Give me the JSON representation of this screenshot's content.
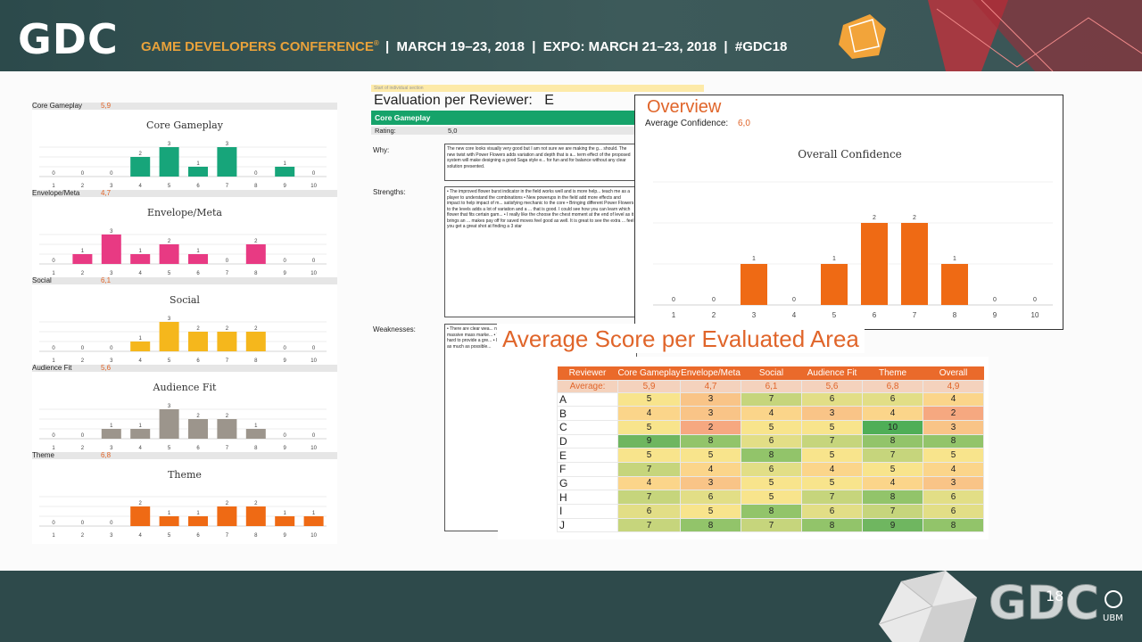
{
  "banner": {
    "logo": "GDC",
    "conference": "GAME DEVELOPERS CONFERENCE",
    "trademark": "®",
    "dates": "|  MARCH 19–23, 2018  |  EXPO: MARCH 21–23, 2018  |  #GDC18"
  },
  "footer": {
    "logo": "GDC",
    "year": "18",
    "company": "UBM"
  },
  "left_charts": [
    {
      "name": "Core Gameplay",
      "avg": "5,9",
      "color": "#17a57a",
      "values": [
        0,
        0,
        0,
        2,
        3,
        1,
        3,
        0,
        1,
        0
      ]
    },
    {
      "name": "Envelope/Meta",
      "avg": "4,7",
      "color": "#e83a83",
      "values": [
        0,
        1,
        3,
        1,
        2,
        1,
        0,
        2,
        0,
        0
      ]
    },
    {
      "name": "Social",
      "avg": "6,1",
      "color": "#f5b71c",
      "values": [
        0,
        0,
        0,
        1,
        3,
        2,
        2,
        2,
        0,
        0
      ]
    },
    {
      "name": "Audience Fit",
      "avg": "5,6",
      "color": "#9c958c",
      "values": [
        0,
        0,
        1,
        1,
        3,
        2,
        2,
        1,
        0,
        0
      ]
    },
    {
      "name": "Theme",
      "avg": "6,8",
      "color": "#ef6a14",
      "values": [
        0,
        0,
        0,
        2,
        1,
        1,
        2,
        2,
        1,
        1
      ]
    }
  ],
  "categories": [
    "1",
    "2",
    "3",
    "4",
    "5",
    "6",
    "7",
    "8",
    "9",
    "10"
  ],
  "evaluation": {
    "top_note": "Start of individual section",
    "title": "Evaluation per Reviewer:",
    "reviewer": "E",
    "section": "Core Gameplay",
    "rating_label": "Rating:",
    "rating_value": "5,0",
    "why_label": "Why:",
    "why_text": "The new core looks visually very good but I am not sure we are making the g... should. The new twist with Power Flowers adds variation and depth that is a... term effect of the proposed system will make designing a good Saga style e... for fun and for balance without any clear solution presented.",
    "strengths_label": "Strengths:",
    "strengths_text": "• The improved flower burst indicator in the field works well and is more help... teach me as a player to understand the combinations • New powerups in the field add more effects and impact to help impact of m... satisfying mechanic to the core • Bringing different Power Flowers to the levels adds a lot of variation and a ... that is good. I could see how you can learn which flower that fits certain gam... • I really like the choose the chest moment at the end of level as it brings an ... makes pay off for saved moves feel good as well. It is great to see the extra ... feel you get a great shot at finding a 3 star",
    "weaknesses_label": "Weaknesses:",
    "weaknesses_text": "• There are clear wea... not called out as a fu... harder for the player ... surgical impact on sp... massive mass marke... • The effects of Powe... controllable progress... The ability to further ... hard to provide a gre... • It feels like a shame... the biggest moment ... • The new powerups ... as much as possible..."
  },
  "overview": {
    "title": "Overview",
    "confidence_label": "Average Confidence:",
    "confidence_value": "6,0"
  },
  "chart_data": [
    {
      "type": "bar",
      "title": "Core Gameplay",
      "categories": [
        "1",
        "2",
        "3",
        "4",
        "5",
        "6",
        "7",
        "8",
        "9",
        "10"
      ],
      "values": [
        0,
        0,
        0,
        2,
        3,
        1,
        3,
        0,
        1,
        0
      ]
    },
    {
      "type": "bar",
      "title": "Envelope/Meta",
      "categories": [
        "1",
        "2",
        "3",
        "4",
        "5",
        "6",
        "7",
        "8",
        "9",
        "10"
      ],
      "values": [
        0,
        1,
        3,
        1,
        2,
        1,
        0,
        2,
        0,
        0
      ]
    },
    {
      "type": "bar",
      "title": "Social",
      "categories": [
        "1",
        "2",
        "3",
        "4",
        "5",
        "6",
        "7",
        "8",
        "9",
        "10"
      ],
      "values": [
        0,
        0,
        0,
        1,
        3,
        2,
        2,
        2,
        0,
        0
      ]
    },
    {
      "type": "bar",
      "title": "Audience Fit",
      "categories": [
        "1",
        "2",
        "3",
        "4",
        "5",
        "6",
        "7",
        "8",
        "9",
        "10"
      ],
      "values": [
        0,
        0,
        1,
        1,
        3,
        2,
        2,
        1,
        0,
        0
      ]
    },
    {
      "type": "bar",
      "title": "Theme",
      "categories": [
        "1",
        "2",
        "3",
        "4",
        "5",
        "6",
        "7",
        "8",
        "9",
        "10"
      ],
      "values": [
        0,
        0,
        0,
        2,
        1,
        1,
        2,
        2,
        1,
        1
      ]
    },
    {
      "type": "bar",
      "title": "Overall Confidence",
      "categories": [
        "1",
        "2",
        "3",
        "4",
        "5",
        "6",
        "7",
        "8",
        "9",
        "10"
      ],
      "values": [
        0,
        0,
        1,
        0,
        1,
        2,
        2,
        1,
        0,
        0
      ],
      "color": "#ef6a14"
    },
    {
      "type": "table",
      "title": "Average Score per Evaluated Area",
      "columns": [
        "Reviewer",
        "Core Gameplay",
        "Envelope/Meta",
        "Social",
        "Audience Fit",
        "Theme",
        "Overall"
      ],
      "average": [
        "Average:",
        "5,9",
        "4,7",
        "6,1",
        "5,6",
        "6,8",
        "4,9"
      ],
      "rows": [
        [
          "A",
          "5",
          "3",
          "7",
          "6",
          "6",
          "4"
        ],
        [
          "B",
          "4",
          "3",
          "4",
          "3",
          "4",
          "2"
        ],
        [
          "C",
          "5",
          "2",
          "5",
          "5",
          "10",
          "3"
        ],
        [
          "D",
          "9",
          "8",
          "6",
          "7",
          "8",
          "8"
        ],
        [
          "E",
          "5",
          "5",
          "8",
          "5",
          "7",
          "5"
        ],
        [
          "F",
          "7",
          "4",
          "6",
          "4",
          "5",
          "4"
        ],
        [
          "G",
          "4",
          "3",
          "5",
          "5",
          "4",
          "3"
        ],
        [
          "H",
          "7",
          "6",
          "5",
          "7",
          "8",
          "6"
        ],
        [
          "I",
          "6",
          "5",
          "8",
          "6",
          "7",
          "6"
        ],
        [
          "J",
          "7",
          "8",
          "7",
          "8",
          "9",
          "8"
        ]
      ]
    }
  ]
}
